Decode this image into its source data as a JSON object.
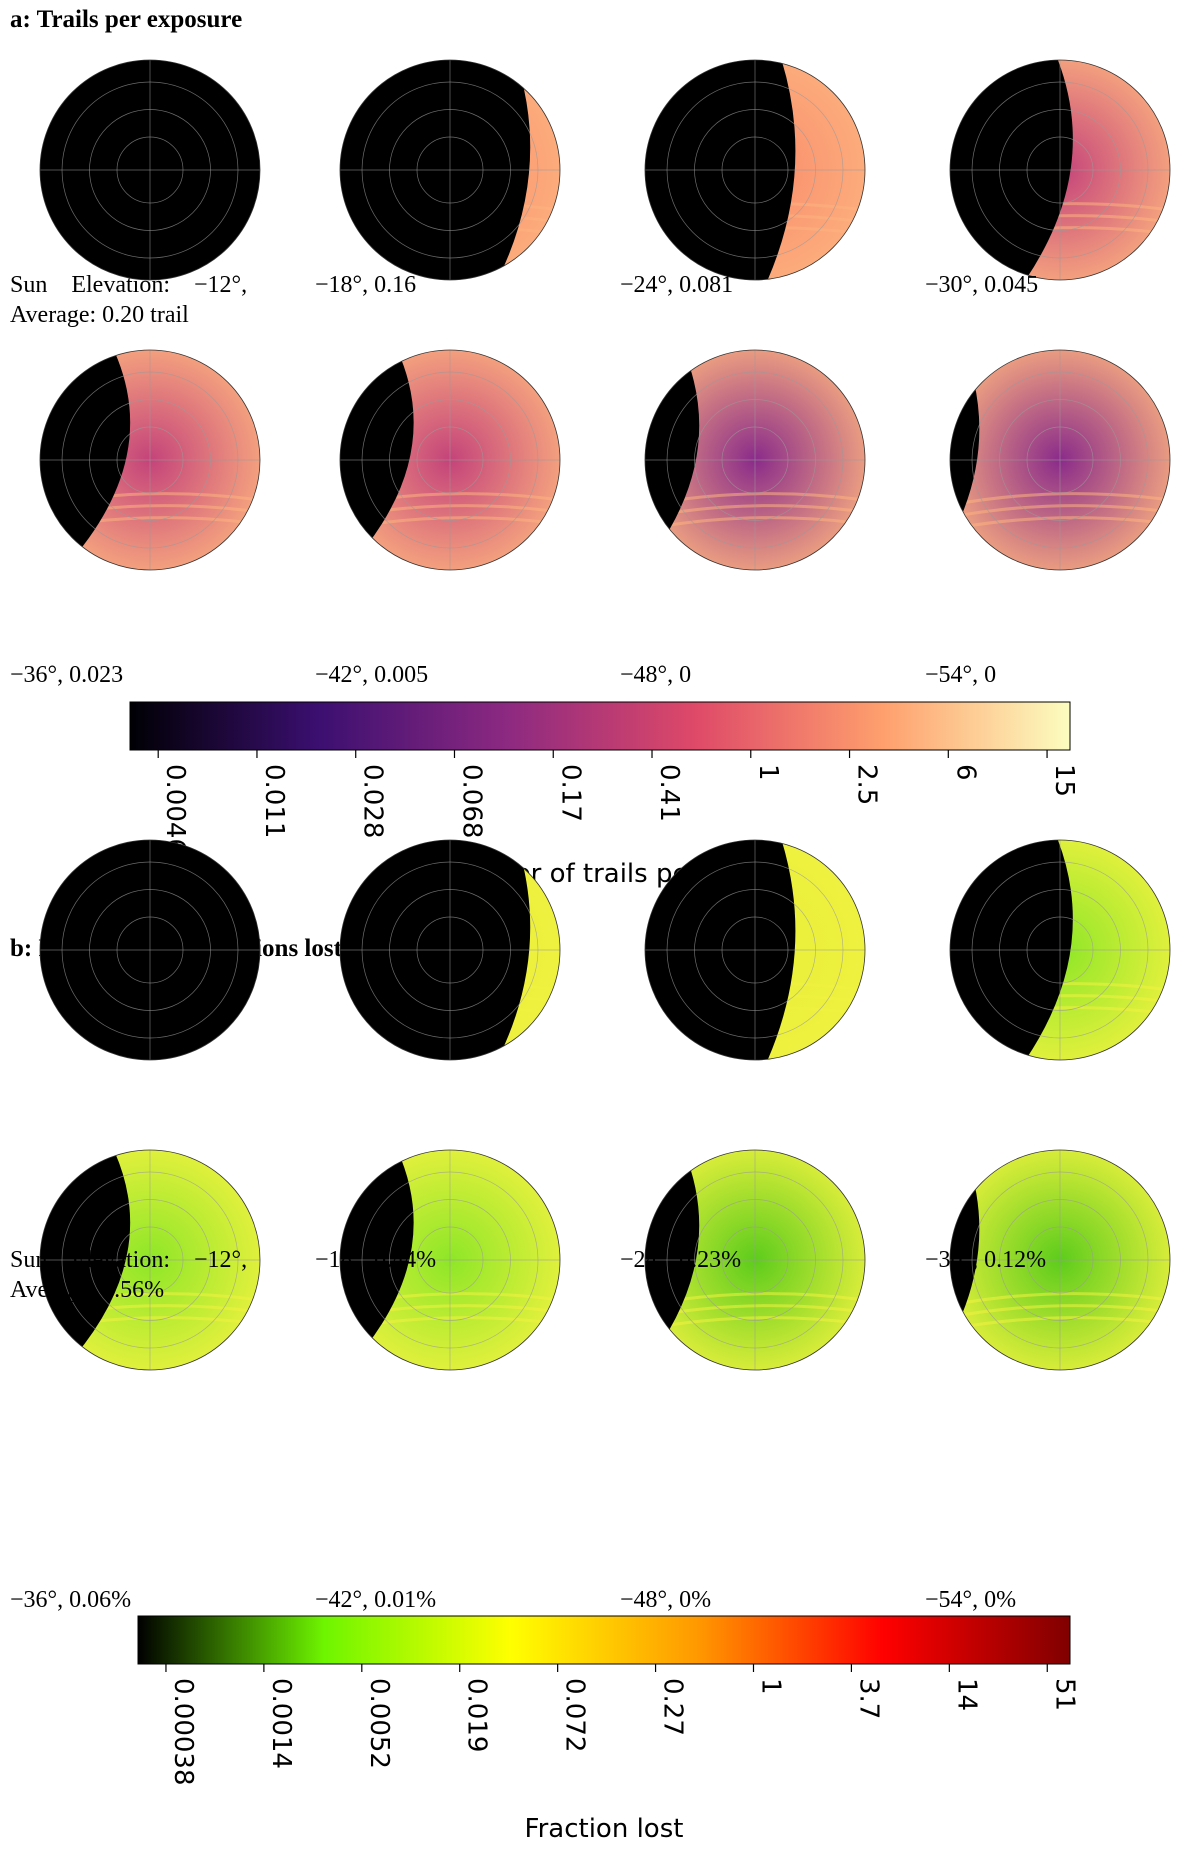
{
  "panels": [
    {
      "id": "a",
      "title": "a: Trails per exposure",
      "first_caption": {
        "line1_label": "Sun Elevation:",
        "line1_value": "−12°,",
        "line2": "Average: 0.20 trail"
      },
      "captions": [
        "−18°, 0.16",
        "−24°, 0.081",
        "−30°, 0.045",
        "−36°, 0.023",
        "−42°, 0.005",
        "−48°, 0",
        "−54°, 0"
      ],
      "colorbar": {
        "label": "Number of trails per exp.",
        "ticks": [
          "0.0046",
          "0.011",
          "0.028",
          "0.068",
          "0.17",
          "0.41",
          "1",
          "2.5",
          "6",
          "15"
        ],
        "scale": "log",
        "colormap": [
          "#000004",
          "#3b0f70",
          "#8c2981",
          "#de4968",
          "#fe9f6d",
          "#fcfdbf"
        ]
      }
    },
    {
      "id": "b",
      "title": "b: Fraction of observations lost to satellite trails",
      "first_caption": {
        "line1_label": "Sun Elevation:",
        "line1_value": "−12°,",
        "line2": "Average: 0.56%"
      },
      "captions": [
        "−18°, 0.44%",
        "−24°, 0.23%",
        "−30°, 0.12%",
        "−36°, 0.06%",
        "−42°, 0.01%",
        "−48°, 0%",
        "−54°, 0%"
      ],
      "colorbar": {
        "label": "Fraction lost",
        "ticks": [
          "0.00038",
          "0.0014",
          "0.0052",
          "0.019",
          "0.072",
          "0.27",
          "1",
          "3.7",
          "14",
          "51"
        ],
        "scale": "log",
        "colormap": [
          "#000000",
          "#6ef500",
          "#ffff00",
          "#ff9900",
          "#ff0000",
          "#800000"
        ]
      }
    }
  ],
  "chart_data": [
    {
      "type": "heatmap",
      "title": "a: Trails per exposure",
      "series": [
        {
          "name": "−12°",
          "values": [
            0.2
          ]
        },
        {
          "name": "−18°",
          "values": [
            0.16
          ]
        },
        {
          "name": "−24°",
          "values": [
            0.081
          ]
        },
        {
          "name": "−30°",
          "values": [
            0.045
          ]
        },
        {
          "name": "−36°",
          "values": [
            0.023
          ]
        },
        {
          "name": "−42°",
          "values": [
            0.005
          ]
        },
        {
          "name": "−48°",
          "values": [
            0
          ]
        },
        {
          "name": "−54°",
          "values": [
            0
          ]
        }
      ],
      "colorbar_label": "Number of trails per exp.",
      "colorbar_ticks": [
        0.0046,
        0.011,
        0.028,
        0.068,
        0.17,
        0.41,
        1,
        2.5,
        6,
        15
      ],
      "colorbar_scale": "log"
    },
    {
      "type": "heatmap",
      "title": "b: Fraction of observations lost to satellite trails",
      "series": [
        {
          "name": "−12°",
          "values": [
            0.56
          ]
        },
        {
          "name": "−18°",
          "values": [
            0.44
          ]
        },
        {
          "name": "−24°",
          "values": [
            0.23
          ]
        },
        {
          "name": "−30°",
          "values": [
            0.12
          ]
        },
        {
          "name": "−36°",
          "values": [
            0.06
          ]
        },
        {
          "name": "−42°",
          "values": [
            0.01
          ]
        },
        {
          "name": "−48°",
          "values": [
            0
          ]
        },
        {
          "name": "−54°",
          "values": [
            0
          ]
        }
      ],
      "colorbar_label": "Fraction lost",
      "colorbar_ticks": [
        0.00038,
        0.0014,
        0.0052,
        0.019,
        0.072,
        0.27,
        1,
        3.7,
        14,
        51
      ],
      "colorbar_scale": "log"
    }
  ]
}
